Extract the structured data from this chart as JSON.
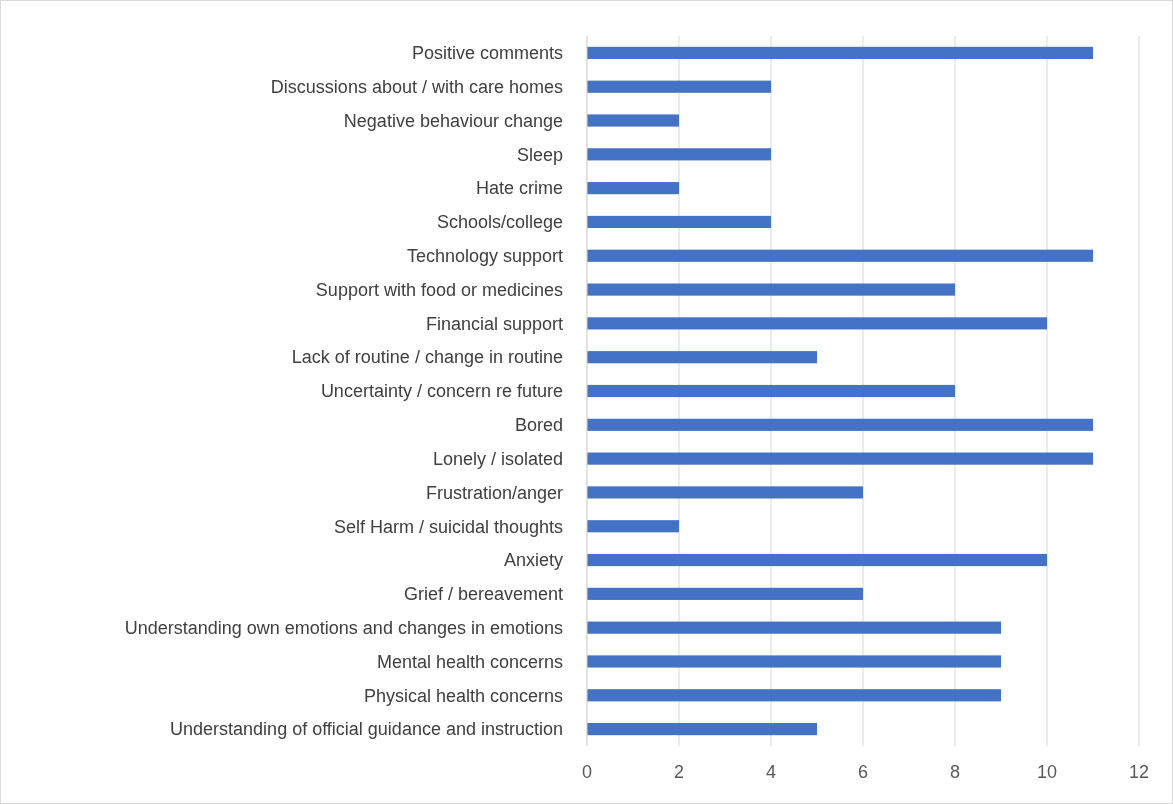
{
  "chart_data": {
    "type": "bar",
    "orientation": "horizontal",
    "categories": [
      "Positive comments",
      "Discussions about / with care homes",
      "Negative behaviour change",
      "Sleep",
      "Hate crime",
      "Schools/college",
      "Technology support",
      "Support with food or medicines",
      "Financial support",
      "Lack of routine / change in routine",
      "Uncertainty / concern re future",
      "Bored",
      "Lonely / isolated",
      "Frustration/anger",
      "Self Harm / suicidal thoughts",
      "Anxiety",
      "Grief / bereavement",
      "Understanding own emotions and changes in emotions",
      "Mental health concerns",
      "Physical health concerns",
      "Understanding of official guidance and instruction"
    ],
    "values": [
      11,
      4,
      2,
      4,
      2,
      4,
      11,
      8,
      10,
      5,
      8,
      11,
      11,
      6,
      2,
      10,
      6,
      9,
      9,
      9,
      5
    ],
    "color": "#4472c4",
    "xlim": [
      0,
      12
    ],
    "xticks": [
      0,
      2,
      4,
      6,
      8,
      10,
      12
    ],
    "grid": "x"
  }
}
